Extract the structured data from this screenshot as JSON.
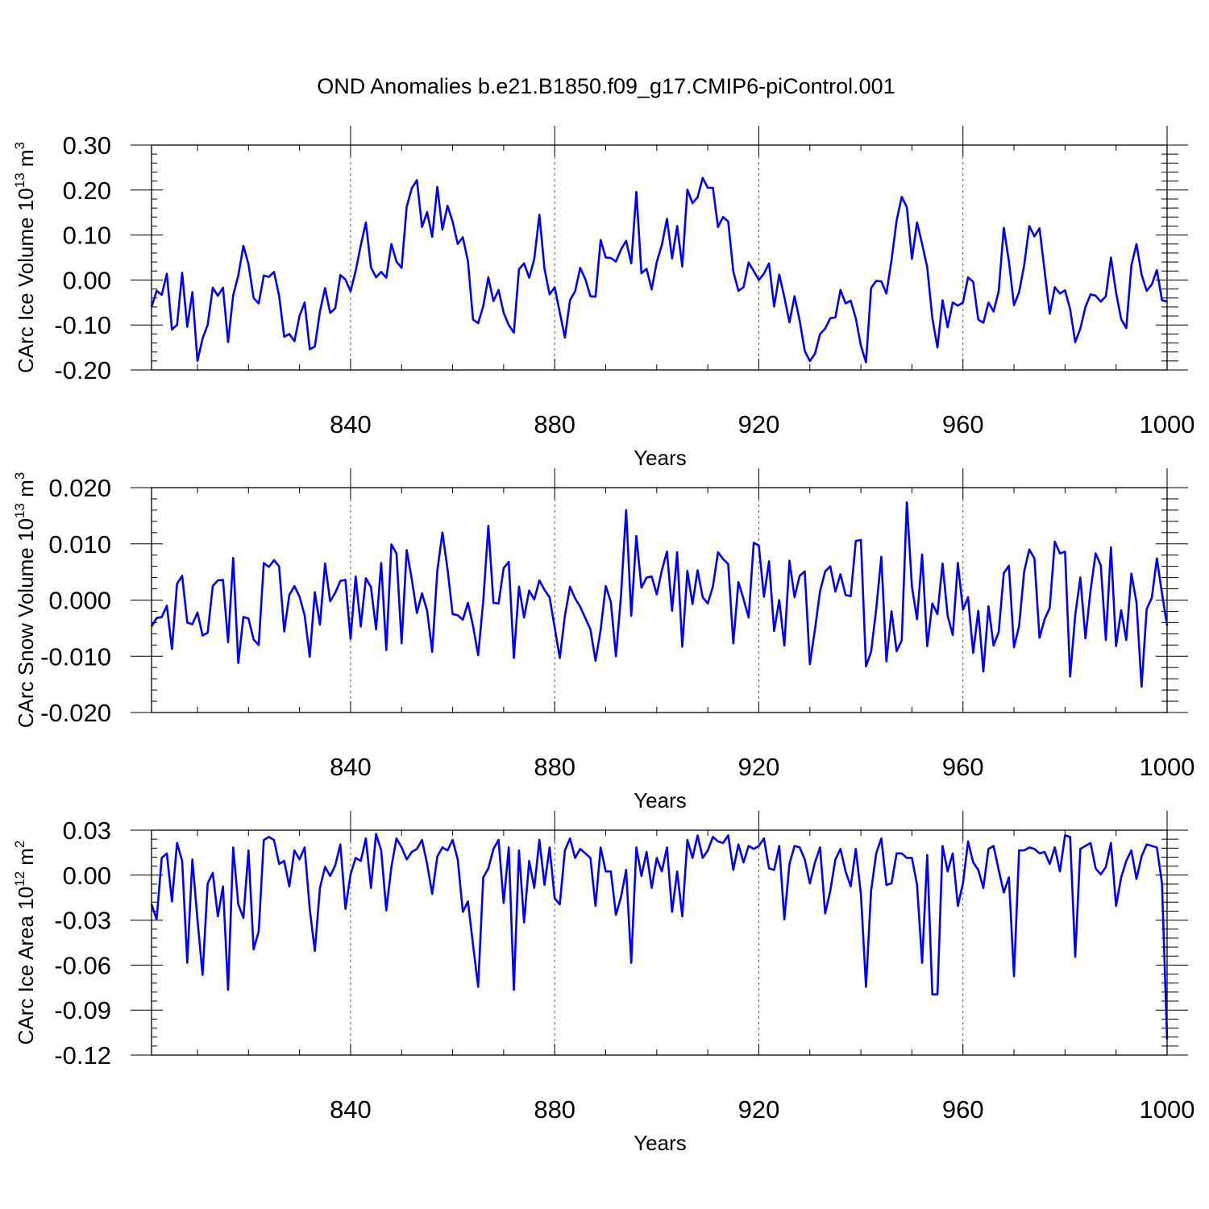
{
  "title": "OND Anomalies b.e21.B1850.f09_g17.CMIP6-piControl.001",
  "line_color": "#0000ff",
  "chart_data": [
    {
      "type": "line",
      "xlabel": "Years",
      "ylabel": "CArc Ice Volume 10",
      "ylabel_sup": "13",
      "ylabel_unit": " m",
      "ylabel_unit_sup": "3",
      "xlim": [
        801,
        1000
      ],
      "ylim": [
        -0.2,
        0.3
      ],
      "xticks": [
        840,
        880,
        920,
        960,
        1000
      ],
      "yticks": [
        -0.2,
        -0.1,
        0.0,
        0.1,
        0.2,
        0.3
      ],
      "ytick_labels": [
        "-0.20",
        "-0.10",
        "0.00",
        "0.10",
        "0.20",
        "0.30"
      ],
      "grid_x": true,
      "series": [
        {
          "x0": 801,
          "values": [
            -0.06,
            -0.024,
            -0.033,
            0.014,
            -0.11,
            -0.1,
            0.016,
            -0.104,
            -0.027,
            -0.18,
            -0.13,
            -0.1,
            -0.017,
            -0.035,
            -0.017,
            -0.138,
            -0.034,
            0.01,
            0.076,
            0.035,
            -0.04,
            -0.052,
            0.01,
            0.007,
            0.018,
            -0.035,
            -0.126,
            -0.12,
            -0.136,
            -0.08,
            -0.05,
            -0.154,
            -0.148,
            -0.07,
            -0.018,
            -0.073,
            -0.063,
            0.011,
            0.001,
            -0.025,
            0.02,
            0.077,
            0.128,
            0.028,
            0.006,
            0.018,
            0.005,
            0.08,
            0.041,
            0.027,
            0.163,
            0.204,
            0.222,
            0.118,
            0.151,
            0.096,
            0.207,
            0.112,
            0.165,
            0.13,
            0.08,
            0.095,
            0.042,
            -0.088,
            -0.096,
            -0.058,
            0.006,
            -0.047,
            -0.022,
            -0.073,
            -0.1,
            -0.117,
            0.024,
            0.037,
            0.005,
            0.047,
            0.145,
            0.025,
            -0.032,
            -0.016,
            -0.072,
            -0.128,
            -0.045,
            -0.025,
            0.027,
            0.002,
            -0.036,
            -0.037,
            0.089,
            0.05,
            0.049,
            0.041,
            0.068,
            0.087,
            0.037,
            0.196,
            0.015,
            0.025,
            -0.021,
            0.04,
            0.078,
            0.136,
            0.048,
            0.12,
            0.03,
            0.201,
            0.171,
            0.184,
            0.227,
            0.205,
            0.205,
            0.118,
            0.14,
            0.13,
            0.019,
            -0.024,
            -0.016,
            0.039,
            0.02,
            0.0,
            0.014,
            0.037,
            -0.059,
            0.012,
            -0.038,
            -0.094,
            -0.036,
            -0.09,
            -0.158,
            -0.18,
            -0.164,
            -0.12,
            -0.108,
            -0.085,
            -0.083,
            -0.022,
            -0.052,
            -0.046,
            -0.085,
            -0.146,
            -0.183,
            -0.018,
            -0.002,
            -0.003,
            -0.03,
            0.044,
            0.132,
            0.185,
            0.162,
            0.047,
            0.128,
            0.08,
            0.028,
            -0.085,
            -0.15,
            -0.045,
            -0.105,
            -0.05,
            -0.057,
            -0.05,
            0.006,
            -0.004,
            -0.088,
            -0.095,
            -0.05,
            -0.07,
            -0.025,
            0.116,
            0.042,
            -0.056,
            -0.027,
            0.033,
            0.12,
            0.097,
            0.115,
            0.02,
            -0.075,
            -0.016,
            -0.03,
            -0.023,
            -0.065,
            -0.138,
            -0.108,
            -0.06,
            -0.032,
            -0.035,
            -0.048,
            -0.036,
            0.05,
            -0.028,
            -0.087,
            -0.107,
            0.032,
            0.08,
            0.012,
            -0.024,
            -0.01,
            0.022,
            -0.045,
            -0.048
          ]
        }
      ]
    },
    {
      "type": "line",
      "xlabel": "Years",
      "ylabel": "CArc Snow Volume 10",
      "ylabel_sup": "13",
      "ylabel_unit": " m",
      "ylabel_unit_sup": "3",
      "xlim": [
        801,
        1000
      ],
      "ylim": [
        -0.02,
        0.02
      ],
      "xticks": [
        840,
        880,
        920,
        960,
        1000
      ],
      "yticks": [
        -0.02,
        -0.01,
        0.0,
        0.01,
        0.02
      ],
      "ytick_labels": [
        "-0.020",
        "-0.010",
        "0.000",
        "0.010",
        "0.020"
      ],
      "grid_x": true,
      "series": [
        {
          "x0": 801,
          "values": [
            -0.0047,
            -0.0032,
            -0.003,
            -0.001,
            -0.0087,
            0.0029,
            0.0043,
            -0.004,
            -0.0043,
            -0.0022,
            -0.0063,
            -0.0058,
            0.0025,
            0.0035,
            0.0036,
            -0.0075,
            0.0075,
            -0.0112,
            -0.003,
            -0.0033,
            -0.007,
            -0.008,
            0.0066,
            0.0059,
            0.0071,
            0.006,
            -0.0056,
            0.0009,
            0.0025,
            0.0006,
            -0.0027,
            -0.0101,
            0.0014,
            -0.0044,
            0.0065,
            -0.0002,
            0.0013,
            0.0034,
            0.0036,
            -0.0069,
            0.0042,
            -0.0047,
            0.0039,
            0.0023,
            -0.0052,
            0.0066,
            -0.0089,
            0.0099,
            0.0083,
            -0.0077,
            0.0089,
            0.0037,
            -0.0023,
            0.0012,
            -0.0019,
            -0.0092,
            0.0052,
            0.012,
            0.0055,
            -0.0025,
            -0.0027,
            -0.0035,
            -0.0005,
            -0.0046,
            -0.0098,
            -0.0002,
            0.0132,
            -0.0005,
            -0.0006,
            0.0057,
            0.0068,
            -0.0103,
            0.0024,
            -0.0031,
            0.0017,
            0.0001,
            0.0035,
            0.0018,
            0.0005,
            -0.0049,
            -0.0103,
            -0.0028,
            0.0024,
            0.0003,
            -0.0012,
            -0.0032,
            -0.0052,
            -0.0108,
            -0.0053,
            0.0025,
            -0.0003,
            -0.01,
            0.0009,
            0.016,
            -0.0028,
            0.0114,
            0.0022,
            0.004,
            0.0042,
            0.001,
            0.0053,
            0.0086,
            -0.0019,
            0.0085,
            -0.0083,
            0.0052,
            -0.0007,
            0.0053,
            0.0005,
            -0.0006,
            0.0024,
            0.0085,
            0.0073,
            0.0064,
            -0.0077,
            0.0032,
            0.0002,
            -0.0031,
            0.0102,
            0.0097,
            0.0006,
            0.0069,
            -0.0055,
            0.0,
            -0.0081,
            0.007,
            0.0005,
            0.0043,
            0.0051,
            -0.0114,
            -0.0052,
            0.0016,
            0.0051,
            0.006,
            0.0015,
            0.0046,
            0.0009,
            0.0007,
            0.0105,
            0.0107,
            -0.0118,
            -0.0092,
            -0.0016,
            0.0077,
            -0.0109,
            -0.002,
            -0.0091,
            -0.0072,
            0.0174,
            0.0024,
            -0.0034,
            0.0081,
            -0.0082,
            -0.0006,
            -0.0025,
            0.0065,
            -0.0028,
            -0.0062,
            0.0066,
            -0.0017,
            0.0005,
            -0.0094,
            -0.0019,
            -0.0127,
            -0.0011,
            -0.0081,
            -0.0057,
            0.0048,
            0.0061,
            -0.0084,
            -0.0046,
            0.0051,
            0.009,
            0.0074,
            -0.0067,
            -0.0034,
            -0.0014,
            0.0104,
            0.0083,
            0.0086,
            -0.0136,
            -0.0027,
            0.004,
            -0.0068,
            0.0017,
            0.0083,
            0.0062,
            -0.0071,
            0.0094,
            -0.0082,
            -0.0018,
            -0.0071,
            0.0047,
            -0.0004,
            -0.0154,
            -0.0016,
            0.0004,
            0.0074,
            0.0012,
            -0.0045
          ]
        }
      ]
    },
    {
      "type": "line",
      "xlabel": "Years",
      "ylabel": "CArc Ice Area 10",
      "ylabel_sup": "12",
      "ylabel_unit": " m",
      "ylabel_unit_sup": "2",
      "xlim": [
        801,
        1000
      ],
      "ylim": [
        -0.12,
        0.03
      ],
      "xticks": [
        840,
        880,
        920,
        960,
        1000
      ],
      "yticks": [
        -0.12,
        -0.09,
        -0.06,
        -0.03,
        0.0,
        0.03
      ],
      "ytick_labels": [
        "-0.12",
        "-0.09",
        "-0.06",
        "-0.03",
        "0.00",
        "0.03"
      ],
      "grid_x": true,
      "series": [
        {
          "x0": 801,
          "values": [
            -0.0195,
            -0.0295,
            0.0115,
            0.0145,
            -0.0175,
            0.0215,
            0.0095,
            -0.0585,
            0.0105,
            -0.0295,
            -0.0665,
            -0.0055,
            0.0015,
            -0.0275,
            -0.0075,
            -0.0765,
            0.0185,
            -0.0195,
            -0.0285,
            0.0165,
            -0.0495,
            -0.0375,
            0.0235,
            0.0255,
            0.0235,
            0.0075,
            0.0095,
            -0.0075,
            0.0165,
            0.0105,
            0.0185,
            -0.0225,
            -0.0505,
            -0.0085,
            0.0055,
            -0.0005,
            0.0065,
            0.0205,
            -0.0225,
            0.0005,
            0.0115,
            0.0095,
            0.0245,
            -0.0085,
            0.0275,
            0.0165,
            -0.0235,
            0.0055,
            0.0245,
            0.0185,
            0.0105,
            0.0155,
            0.0175,
            0.0235,
            0.0075,
            -0.0125,
            0.0125,
            0.0185,
            0.0165,
            0.0235,
            0.0105,
            -0.0245,
            -0.0175,
            -0.0465,
            -0.0745,
            -0.0015,
            0.0045,
            0.0175,
            0.0235,
            -0.0185,
            0.0185,
            -0.0765,
            0.0165,
            -0.0315,
            0.0095,
            -0.0085,
            0.0235,
            -0.0065,
            0.0185,
            -0.0155,
            -0.0195,
            0.0165,
            0.0245,
            0.0115,
            0.0175,
            0.0145,
            0.0115,
            -0.0205,
            0.0185,
            0.0025,
            0.0025,
            -0.0265,
            -0.0145,
            0.0035,
            -0.0585,
            0.0185,
            -0.0005,
            0.0155,
            -0.0085,
            0.0115,
            0.0025,
            0.0185,
            -0.0245,
            0.0025,
            -0.0275,
            0.0235,
            0.0115,
            0.0265,
            0.0115,
            0.0165,
            0.0255,
            0.0225,
            0.0215,
            0.0265,
            0.0035,
            0.0205,
            0.0085,
            0.0195,
            0.0175,
            0.0195,
            0.0245,
            0.0045,
            0.0035,
            0.0195,
            -0.0295,
            0.0075,
            0.0195,
            0.0185,
            0.0105,
            -0.0055,
            0.0085,
            0.0185,
            -0.0255,
            -0.0105,
            0.0105,
            0.0175,
            0.0025,
            -0.0075,
            0.0175,
            -0.0125,
            -0.0745,
            -0.0105,
            0.0145,
            0.0245,
            -0.0065,
            -0.0055,
            0.0145,
            0.0145,
            0.0115,
            0.0115,
            -0.0065,
            -0.0585,
            0.0135,
            -0.0795,
            -0.0795,
            0.0195,
            0.0025,
            0.0145,
            -0.0205,
            -0.0055,
            0.0225,
            0.0085,
            0.0035,
            -0.0085,
            0.0175,
            0.0195,
            0.0035,
            -0.0115,
            -0.0015,
            -0.0675,
            0.0165,
            0.0165,
            0.0185,
            0.0175,
            0.0145,
            0.0155,
            0.0075,
            0.0185,
            0.0025,
            0.0265,
            0.0255,
            -0.0545,
            0.0175,
            0.0195,
            0.0215,
            0.0045,
            0.0005,
            0.0055,
            0.0215,
            -0.0205,
            -0.0015,
            0.0095,
            0.0165,
            -0.0025,
            0.0125,
            0.0205,
            0.0195,
            0.0185,
            -0.0055,
            -0.1095
          ]
        }
      ]
    }
  ]
}
